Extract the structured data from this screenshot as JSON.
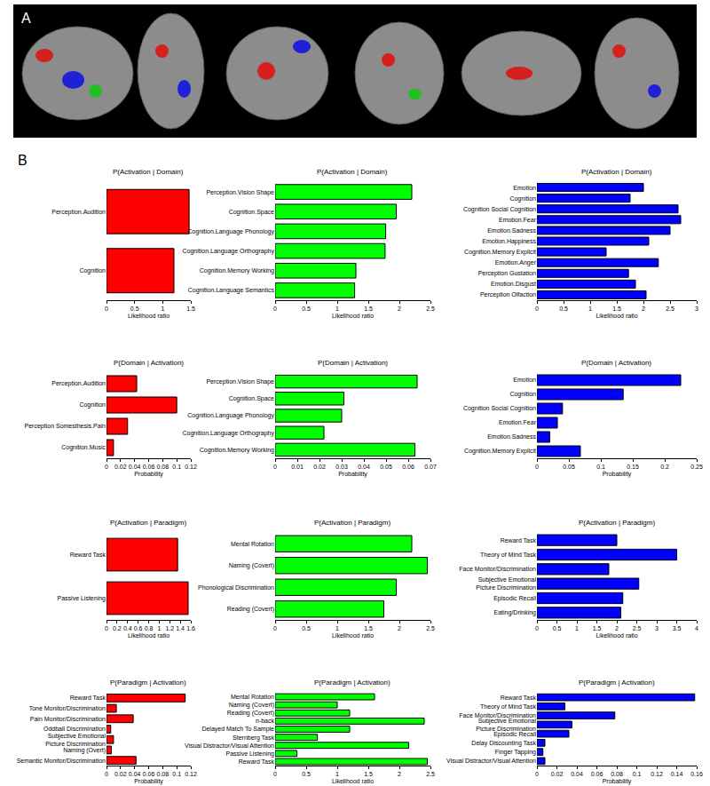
{
  "panel_labels": [
    "A",
    "B"
  ],
  "chart_data": [
    {
      "type": "bar",
      "orientation": "horizontal",
      "title": "P(Activation | Domain)",
      "x_label": "Likelihood ratio",
      "color": "#ff0000",
      "categories": [
        "Perception.Audition",
        "Cognition"
      ],
      "values": [
        1.47,
        1.2
      ],
      "xlim": [
        0,
        1.5
      ],
      "xticks": [
        0,
        0.5,
        1,
        1.5
      ]
    },
    {
      "type": "bar",
      "orientation": "horizontal",
      "title": "P(Activation | Domain)",
      "x_label": "Likelihood ratio",
      "color": "#00ff00",
      "categories": [
        "Perception.Vision Shape",
        "Cognition.Space",
        "Cognition.Language Phonology",
        "Cognition.Language Orthography",
        "Cognition.Memory Working",
        "Cognition.Language Semantics"
      ],
      "values": [
        2.2,
        1.95,
        1.78,
        1.77,
        1.3,
        1.28
      ],
      "xlim": [
        0,
        2.5
      ],
      "xticks": [
        0,
        0.5,
        1,
        1.5,
        2,
        2.5
      ]
    },
    {
      "type": "bar",
      "orientation": "horizontal",
      "title": "P(Activation | Domain)",
      "x_label": "Likelihood ratio",
      "color": "#0000ff",
      "categories": [
        "Emotion",
        "Cognition",
        "Cognition Social Cognition",
        "Emotion.Fear",
        "Emotion.Sadness",
        "Emotion.Happiness",
        "Cognition.Memory Explicit",
        "Emotion.Anger",
        "Perception Gustation",
        "Emotion.Disgust",
        "Perception Olfaction"
      ],
      "values": [
        2.0,
        1.75,
        2.65,
        2.7,
        2.5,
        2.1,
        1.3,
        2.28,
        1.72,
        1.85,
        2.05
      ],
      "xlim": [
        0,
        3
      ],
      "xticks": [
        0,
        0.5,
        1,
        1.5,
        2,
        2.5,
        3
      ]
    },
    {
      "type": "bar",
      "orientation": "horizontal",
      "title": "P(Domain | Activation)",
      "x_label": "Probability",
      "color": "#ff0000",
      "categories": [
        "Perception.Audition",
        "Cognition",
        "Perception Somesthesis.Pain",
        "Cognition.Music"
      ],
      "values": [
        0.043,
        0.1,
        0.03,
        0.01
      ],
      "xlim": [
        0,
        0.12
      ],
      "xticks": [
        0,
        0.02,
        0.04,
        0.06,
        0.08,
        0.1,
        0.12
      ]
    },
    {
      "type": "bar",
      "orientation": "horizontal",
      "title": "P(Domain | Activation)",
      "x_label": "Probability",
      "color": "#00ff00",
      "categories": [
        "Perception.Vision Shape",
        "Cognition.Space",
        "Cognition.Language Phonology",
        "Cognition.Language Orthography",
        "Cognition.Memory Working"
      ],
      "values": [
        0.064,
        0.031,
        0.03,
        0.022,
        0.063
      ],
      "xlim": [
        0,
        0.07
      ],
      "xticks": [
        0,
        0.01,
        0.02,
        0.03,
        0.04,
        0.05,
        0.06,
        0.07
      ]
    },
    {
      "type": "bar",
      "orientation": "horizontal",
      "title": "P(Domain | Activation)",
      "x_label": "Probability",
      "color": "#0000ff",
      "categories": [
        "Emotion",
        "Cognition",
        "Cognition Social Cognition",
        "Emotion.Fear",
        "Emotion.Sadness",
        "Cognition.Memory Explicit"
      ],
      "values": [
        0.225,
        0.135,
        0.04,
        0.032,
        0.02,
        0.068
      ],
      "xlim": [
        0,
        0.25
      ],
      "xticks": [
        0,
        0.05,
        0.1,
        0.15,
        0.2,
        0.25
      ]
    },
    {
      "type": "bar",
      "orientation": "horizontal",
      "title": "P(Activation | Paradigm)",
      "x_label": "Likelihood ratio",
      "color": "#ff0000",
      "categories": [
        "Reward Task",
        "Passive Listening"
      ],
      "values": [
        1.35,
        1.55
      ],
      "xlim": [
        0,
        1.6
      ],
      "xticks": [
        0,
        0.2,
        0.4,
        0.6,
        0.8,
        1,
        1.2,
        1.4,
        1.6
      ]
    },
    {
      "type": "bar",
      "orientation": "horizontal",
      "title": "P(Activation | Paradigm)",
      "x_label": "Likelihood ratio",
      "color": "#00ff00",
      "categories": [
        "Mental Rotation",
        "Naming (Covert)",
        "Phonological Discrimination",
        "Reading (Covert)"
      ],
      "values": [
        2.2,
        2.45,
        1.95,
        1.75
      ],
      "xlim": [
        0,
        2.5
      ],
      "xticks": [
        0,
        0.5,
        1,
        1.5,
        2,
        2.5
      ]
    },
    {
      "type": "bar",
      "orientation": "horizontal",
      "title": "P(Activation | Paradigm)",
      "x_label": "Likelihood ratio",
      "color": "#0000ff",
      "categories": [
        "Reward Task",
        "Theory of Mind Task",
        "Face Monitor/Discrimination",
        "Subjective Emotional\nPicture Discrimination",
        "Episodic Recall",
        "Eating/Drinking"
      ],
      "values": [
        2.0,
        3.5,
        1.8,
        2.55,
        2.15,
        2.1
      ],
      "xlim": [
        0,
        4
      ],
      "xticks": [
        0,
        0.5,
        1,
        1.5,
        2,
        2.5,
        3,
        3.5,
        4
      ]
    },
    {
      "type": "bar",
      "orientation": "horizontal",
      "title": "P(Paradigm | Activation)",
      "x_label": "Probability",
      "color": "#ff0000",
      "categories": [
        "Reward Task",
        "Tone Monitor/Discrimination",
        "Pain Monitor/Discrimination",
        "Oddball Discrimination",
        "Subjective Emotional\nPicture Discrimination",
        "Naming (Overt)",
        "Semantic Monitor/Discrimination"
      ],
      "values": [
        0.112,
        0.014,
        0.038,
        0.006,
        0.01,
        0.007,
        0.042
      ],
      "xlim": [
        0,
        0.12
      ],
      "xticks": [
        0,
        0.02,
        0.04,
        0.06,
        0.08,
        0.1,
        0.12
      ]
    },
    {
      "type": "bar",
      "orientation": "horizontal",
      "title": "P(Paradigm | Activation)",
      "x_label": "Likelihood ratio",
      "color": "#00ff00",
      "categories": [
        "Mental Rotation",
        "Naming (Covert)",
        "Reading (Covert)",
        "n-back",
        "Delayed Match To Sample",
        "Sternberg Task",
        "Visual Distractor/Visual Attention",
        "Passive Listening",
        "Reward Task"
      ],
      "values": [
        1.6,
        1.0,
        1.2,
        2.4,
        1.2,
        0.68,
        2.15,
        0.35,
        2.45
      ],
      "xlim": [
        0,
        2.5
      ],
      "xticks": [
        0,
        0.5,
        1,
        1.5,
        2,
        2.5
      ]
    },
    {
      "type": "bar",
      "orientation": "horizontal",
      "title": "P(Paradigm | Activation)",
      "x_label": "Probability",
      "color": "#0000ff",
      "categories": [
        "Reward Task",
        "Theory of Mind Task",
        "Face Monitor/Discrimination",
        "Subjective Emotional\nPicture Discrimination",
        "Episodic Recall",
        "Delay Discounting Task",
        "Finger Tapping",
        "Visual Distractor/Visual Attention"
      ],
      "values": [
        0.158,
        0.028,
        0.078,
        0.035,
        0.032,
        0.008,
        0.006,
        0.008
      ],
      "xlim": [
        0,
        0.16
      ],
      "xticks": [
        0,
        0.02,
        0.04,
        0.06,
        0.08,
        0.1,
        0.12,
        0.14,
        0.16
      ]
    }
  ]
}
